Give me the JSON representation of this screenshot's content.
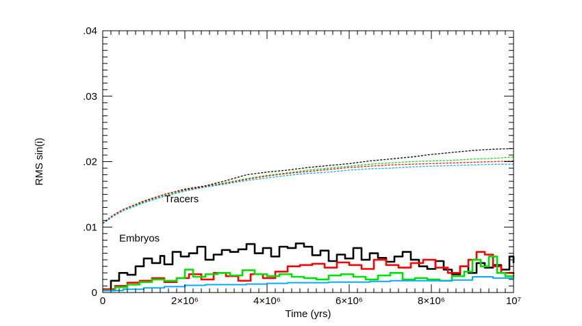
{
  "chart_data": {
    "type": "line",
    "xlabel": "Time (yrs)",
    "ylabel": "RMS sin(i)",
    "xlim": [
      0,
      10000000
    ],
    "ylim": [
      0,
      0.04
    ],
    "x_ticks": [
      {
        "value": 0,
        "label": "0"
      },
      {
        "value": 2000000,
        "label": "2×10⁶"
      },
      {
        "value": 4000000,
        "label": "4×10⁶"
      },
      {
        "value": 6000000,
        "label": "6×10⁶"
      },
      {
        "value": 8000000,
        "label": "8×10⁶"
      },
      {
        "value": 10000000,
        "label": "10⁷"
      }
    ],
    "y_ticks": [
      {
        "value": 0,
        "label": "0"
      },
      {
        "value": 0.01,
        "label": ".01"
      },
      {
        "value": 0.02,
        "label": ".02"
      },
      {
        "value": 0.03,
        "label": ".03"
      },
      {
        "value": 0.04,
        "label": ".04"
      }
    ],
    "grid": false,
    "annotations": [
      {
        "text": "Tracers",
        "x": 1500000,
        "y": 0.0138
      },
      {
        "text": "Embryos",
        "x": 400000,
        "y": 0.0078
      }
    ],
    "series": [
      {
        "group": "tracers",
        "color": "#000000",
        "dash": true,
        "x": [
          0,
          250000,
          500000,
          1000000,
          1500000,
          2000000,
          2500000,
          3000000,
          3500000,
          4000000,
          4500000,
          5000000,
          5500000,
          6000000,
          6500000,
          7000000,
          7500000,
          8000000,
          8500000,
          9000000,
          9500000,
          10000000
        ],
        "y": [
          0.0106,
          0.0118,
          0.0127,
          0.0139,
          0.015,
          0.0158,
          0.0163,
          0.0171,
          0.018,
          0.0184,
          0.0187,
          0.0191,
          0.0194,
          0.0197,
          0.0201,
          0.0204,
          0.0207,
          0.0211,
          0.0214,
          0.0217,
          0.0219,
          0.022
        ]
      },
      {
        "group": "tracers",
        "color": "#00e000",
        "dash": true,
        "x": [
          0,
          250000,
          500000,
          1000000,
          1500000,
          2000000,
          2500000,
          3000000,
          3500000,
          4000000,
          4500000,
          5000000,
          5500000,
          6000000,
          6500000,
          7000000,
          7500000,
          8000000,
          8500000,
          9000000,
          9500000,
          10000000
        ],
        "y": [
          0.0106,
          0.0117,
          0.0126,
          0.0138,
          0.0148,
          0.0156,
          0.0162,
          0.0168,
          0.0174,
          0.0179,
          0.0183,
          0.0187,
          0.019,
          0.0193,
          0.0196,
          0.0198,
          0.02,
          0.0201,
          0.0202,
          0.0204,
          0.0205,
          0.0207
        ]
      },
      {
        "group": "tracers",
        "color": "#ff0000",
        "dash": true,
        "x": [
          0,
          250000,
          500000,
          1000000,
          1500000,
          2000000,
          2500000,
          3000000,
          3500000,
          4000000,
          4500000,
          5000000,
          5500000,
          6000000,
          6500000,
          7000000,
          7500000,
          8000000,
          8500000,
          9000000,
          9500000,
          10000000
        ],
        "y": [
          0.0106,
          0.0118,
          0.0127,
          0.014,
          0.015,
          0.0157,
          0.0162,
          0.0167,
          0.0173,
          0.0178,
          0.0182,
          0.0185,
          0.0188,
          0.0191,
          0.0193,
          0.0195,
          0.0196,
          0.0197,
          0.0198,
          0.0199,
          0.02,
          0.0201
        ]
      },
      {
        "group": "tracers",
        "color": "#00aaff",
        "dash": true,
        "x": [
          0,
          250000,
          500000,
          1000000,
          1500000,
          2000000,
          2500000,
          3000000,
          3500000,
          4000000,
          4500000,
          5000000,
          5500000,
          6000000,
          6500000,
          7000000,
          7500000,
          8000000,
          8500000,
          9000000,
          9500000,
          10000000
        ],
        "y": [
          0.0105,
          0.0116,
          0.0125,
          0.0137,
          0.0147,
          0.0155,
          0.0161,
          0.0166,
          0.0171,
          0.0175,
          0.0179,
          0.0182,
          0.0184,
          0.0187,
          0.0189,
          0.019,
          0.0192,
          0.0193,
          0.0194,
          0.0195,
          0.0196,
          0.0196
        ]
      },
      {
        "group": "embryos",
        "color": "#000000",
        "dash": false,
        "x": [
          0,
          200000,
          400000,
          600000,
          800000,
          1000000,
          1200000,
          1400000,
          1500000,
          1700000,
          1900000,
          2100000,
          2300000,
          2500000,
          2700000,
          2900000,
          3100000,
          3300000,
          3500000,
          3700000,
          3900000,
          4100000,
          4300000,
          4500000,
          4700000,
          4900000,
          5100000,
          5300000,
          5500000,
          5700000,
          5900000,
          6100000,
          6300000,
          6500000,
          6700000,
          6900000,
          7100000,
          7300000,
          7500000,
          7700000,
          7900000,
          8100000,
          8300000,
          8500000,
          8700000,
          8900000,
          9100000,
          9300000,
          9500000,
          9700000,
          9900000,
          10000000
        ],
        "y": [
          0.0005,
          0.0018,
          0.003,
          0.0027,
          0.004,
          0.0052,
          0.0045,
          0.0056,
          0.0043,
          0.0062,
          0.0055,
          0.006,
          0.007,
          0.005,
          0.0058,
          0.0065,
          0.0062,
          0.0066,
          0.0074,
          0.006,
          0.0068,
          0.0055,
          0.007,
          0.0068,
          0.0075,
          0.007,
          0.0057,
          0.0064,
          0.0048,
          0.0058,
          0.0052,
          0.0068,
          0.005,
          0.006,
          0.0053,
          0.0047,
          0.0055,
          0.0062,
          0.005,
          0.004,
          0.0036,
          0.0048,
          0.0035,
          0.0028,
          0.004,
          0.003,
          0.0045,
          0.0038,
          0.0042,
          0.0035,
          0.0055,
          0.0045
        ]
      },
      {
        "group": "embryos",
        "color": "#ff0000",
        "dash": false,
        "x": [
          0,
          300000,
          600000,
          900000,
          1200000,
          1500000,
          1800000,
          2100000,
          2400000,
          2700000,
          3000000,
          3300000,
          3600000,
          3900000,
          4200000,
          4500000,
          4800000,
          5100000,
          5400000,
          5700000,
          6000000,
          6300000,
          6600000,
          6900000,
          7200000,
          7500000,
          7800000,
          8100000,
          8400000,
          8700000,
          8900000,
          9100000,
          9300000,
          9500000,
          9700000,
          10000000
        ],
        "y": [
          0.0005,
          0.001,
          0.0015,
          0.0018,
          0.0022,
          0.0016,
          0.0022,
          0.0028,
          0.002,
          0.003,
          0.0025,
          0.0018,
          0.0028,
          0.0022,
          0.0032,
          0.004,
          0.0042,
          0.0044,
          0.0038,
          0.0046,
          0.0042,
          0.0036,
          0.005,
          0.0042,
          0.0038,
          0.0045,
          0.005,
          0.0038,
          0.003,
          0.004,
          0.005,
          0.0062,
          0.0058,
          0.004,
          0.003,
          0.0028
        ]
      },
      {
        "group": "embryos",
        "color": "#00e000",
        "dash": false,
        "x": [
          0,
          300000,
          600000,
          900000,
          1200000,
          1500000,
          1800000,
          2000000,
          2200000,
          2500000,
          2800000,
          3100000,
          3400000,
          3700000,
          4000000,
          4300000,
          4600000,
          4900000,
          5200000,
          5500000,
          5800000,
          6100000,
          6400000,
          6700000,
          7000000,
          7300000,
          7600000,
          7900000,
          8200000,
          8500000,
          8800000,
          9000000,
          9200000,
          9400000,
          9600000,
          9800000,
          10000000
        ],
        "y": [
          0.0003,
          0.0008,
          0.0012,
          0.0016,
          0.002,
          0.0018,
          0.0022,
          0.0035,
          0.0024,
          0.0028,
          0.003,
          0.0026,
          0.0034,
          0.0028,
          0.0025,
          0.0028,
          0.0024,
          0.0022,
          0.002,
          0.0026,
          0.0028,
          0.0024,
          0.002,
          0.0026,
          0.003,
          0.002,
          0.0022,
          0.002,
          0.0018,
          0.0025,
          0.0032,
          0.005,
          0.004,
          0.0055,
          0.003,
          0.0025,
          0.0027
        ]
      },
      {
        "group": "embryos",
        "color": "#00aaff",
        "dash": false,
        "x": [
          0,
          500000,
          1000000,
          1500000,
          2000000,
          2500000,
          3000000,
          3500000,
          4000000,
          4500000,
          5000000,
          5500000,
          6000000,
          6500000,
          7000000,
          7500000,
          8000000,
          8500000,
          9000000,
          9500000,
          10000000
        ],
        "y": [
          0.0003,
          0.0005,
          0.0007,
          0.0009,
          0.0011,
          0.0012,
          0.0012,
          0.0013,
          0.0014,
          0.0015,
          0.0015,
          0.0016,
          0.0016,
          0.0017,
          0.0018,
          0.0018,
          0.0018,
          0.0019,
          0.0024,
          0.0022,
          0.0023
        ]
      }
    ]
  }
}
